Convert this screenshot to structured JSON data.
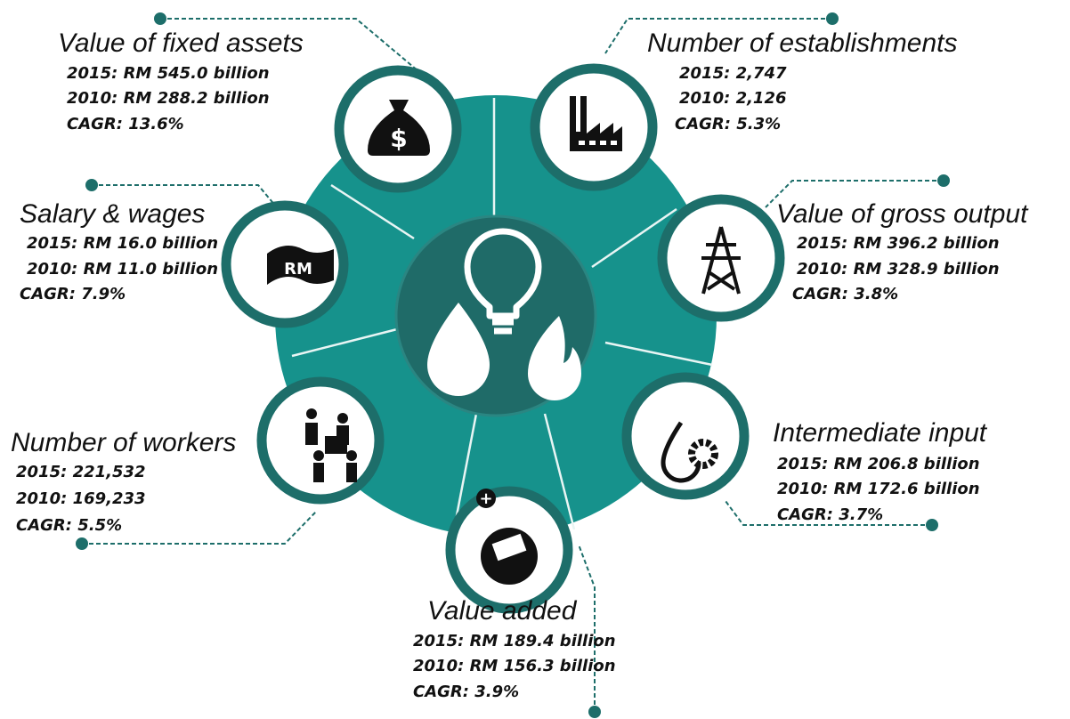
{
  "items": [
    {
      "title": "Value of fixed assets",
      "lines": [
        "2015: RM 545.0 billion",
        "2010: RM 288.2 billion",
        "CAGR: 13.6%"
      ]
    },
    {
      "title": "Number of establishments",
      "lines": [
        "2015: 2,747",
        "2010: 2,126",
        "CAGR: 5.3%"
      ]
    },
    {
      "title": "Value of gross output",
      "lines": [
        "2015: RM 396.2 billion",
        "2010: RM 328.9 billion",
        "CAGR: 3.8%"
      ]
    },
    {
      "title": "Intermediate input",
      "lines": [
        "2015: RM 206.8 billion",
        "2010: RM 172.6 billion",
        "CAGR: 3.7%"
      ]
    },
    {
      "title": "Value added",
      "lines": [
        "2015: RM 189.4 billion",
        "2010: RM 156.3 billion",
        "CAGR: 3.9%"
      ]
    },
    {
      "title": "Number of workers",
      "lines": [
        "2015: 221,532",
        "2010: 169,233",
        "CAGR: 5.5%"
      ]
    },
    {
      "title": "Salary & wages",
      "icon_label": "RM",
      "lines": [
        "2015: RM 16.0 billion",
        "2010: RM 11.0 billion",
        "CAGR: 7.9%"
      ]
    }
  ]
}
